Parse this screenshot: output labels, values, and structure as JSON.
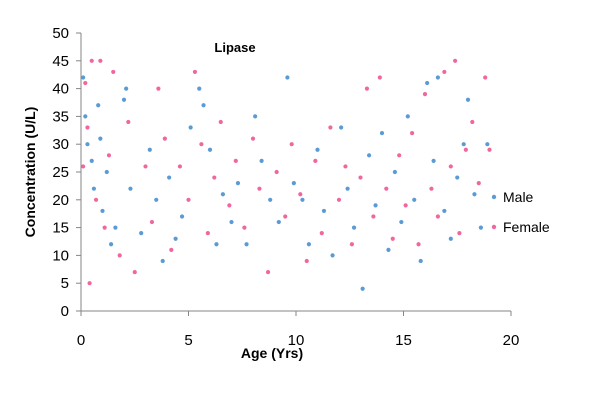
{
  "chart_data": {
    "type": "scatter",
    "title": "Lipase",
    "xlabel": "Age (Yrs)",
    "ylabel": "Concentration (U/L)",
    "xlim": [
      0,
      20
    ],
    "ylim": [
      0,
      50
    ],
    "xticks": [
      0,
      5,
      10,
      15,
      20
    ],
    "yticks": [
      0,
      5,
      10,
      15,
      20,
      25,
      30,
      35,
      40,
      45,
      50
    ],
    "grid": false,
    "legend_position": "right",
    "series": [
      {
        "name": "Male",
        "color": "#5b9bd5",
        "points": [
          [
            0.1,
            42
          ],
          [
            0.2,
            35
          ],
          [
            0.3,
            30
          ],
          [
            0.5,
            27
          ],
          [
            0.6,
            22
          ],
          [
            0.8,
            37
          ],
          [
            0.9,
            31
          ],
          [
            1.0,
            18
          ],
          [
            1.2,
            25
          ],
          [
            1.4,
            12
          ],
          [
            1.6,
            15
          ],
          [
            2.0,
            38
          ],
          [
            2.1,
            40
          ],
          [
            2.3,
            22
          ],
          [
            2.8,
            14
          ],
          [
            3.2,
            29
          ],
          [
            3.5,
            20
          ],
          [
            3.8,
            9
          ],
          [
            4.1,
            24
          ],
          [
            4.4,
            13
          ],
          [
            4.7,
            17
          ],
          [
            5.1,
            33
          ],
          [
            5.5,
            40
          ],
          [
            5.7,
            37
          ],
          [
            6.0,
            29
          ],
          [
            6.3,
            12
          ],
          [
            6.6,
            21
          ],
          [
            7.0,
            16
          ],
          [
            7.3,
            23
          ],
          [
            7.7,
            12
          ],
          [
            8.1,
            35
          ],
          [
            8.4,
            27
          ],
          [
            8.8,
            20
          ],
          [
            9.2,
            16
          ],
          [
            9.6,
            42
          ],
          [
            9.9,
            23
          ],
          [
            10.3,
            20
          ],
          [
            10.6,
            12
          ],
          [
            11.0,
            29
          ],
          [
            11.3,
            18
          ],
          [
            11.7,
            10
          ],
          [
            12.1,
            33
          ],
          [
            12.4,
            22
          ],
          [
            12.7,
            15
          ],
          [
            13.1,
            4
          ],
          [
            13.4,
            28
          ],
          [
            13.7,
            19
          ],
          [
            14.0,
            32
          ],
          [
            14.3,
            11
          ],
          [
            14.6,
            25
          ],
          [
            14.9,
            16
          ],
          [
            15.2,
            35
          ],
          [
            15.5,
            20
          ],
          [
            15.8,
            9
          ],
          [
            16.1,
            41
          ],
          [
            16.4,
            27
          ],
          [
            16.6,
            42
          ],
          [
            16.9,
            18
          ],
          [
            17.2,
            13
          ],
          [
            17.5,
            24
          ],
          [
            17.8,
            30
          ],
          [
            18.0,
            38
          ],
          [
            18.3,
            21
          ],
          [
            18.6,
            15
          ],
          [
            18.9,
            30
          ]
        ]
      },
      {
        "name": "Female",
        "color": "#f0679e",
        "points": [
          [
            0.1,
            26
          ],
          [
            0.2,
            41
          ],
          [
            0.3,
            33
          ],
          [
            0.4,
            5
          ],
          [
            0.5,
            45
          ],
          [
            0.7,
            20
          ],
          [
            0.9,
            45
          ],
          [
            1.1,
            15
          ],
          [
            1.3,
            28
          ],
          [
            1.5,
            43
          ],
          [
            1.8,
            10
          ],
          [
            2.2,
            34
          ],
          [
            2.5,
            7
          ],
          [
            3.0,
            26
          ],
          [
            3.3,
            16
          ],
          [
            3.6,
            40
          ],
          [
            3.9,
            31
          ],
          [
            4.2,
            11
          ],
          [
            4.6,
            26
          ],
          [
            5.0,
            20
          ],
          [
            5.3,
            43
          ],
          [
            5.6,
            30
          ],
          [
            5.9,
            14
          ],
          [
            6.2,
            24
          ],
          [
            6.5,
            34
          ],
          [
            6.9,
            19
          ],
          [
            7.2,
            27
          ],
          [
            7.6,
            15
          ],
          [
            8.0,
            31
          ],
          [
            8.3,
            22
          ],
          [
            8.7,
            7
          ],
          [
            9.1,
            25
          ],
          [
            9.5,
            17
          ],
          [
            9.8,
            30
          ],
          [
            10.2,
            21
          ],
          [
            10.5,
            9
          ],
          [
            10.9,
            27
          ],
          [
            11.2,
            14
          ],
          [
            11.6,
            33
          ],
          [
            12.0,
            20
          ],
          [
            12.3,
            26
          ],
          [
            12.6,
            12
          ],
          [
            13.0,
            24
          ],
          [
            13.3,
            40
          ],
          [
            13.6,
            17
          ],
          [
            13.9,
            42
          ],
          [
            14.2,
            22
          ],
          [
            14.5,
            13
          ],
          [
            14.8,
            28
          ],
          [
            15.1,
            19
          ],
          [
            15.4,
            32
          ],
          [
            15.7,
            12
          ],
          [
            16.0,
            39
          ],
          [
            16.3,
            22
          ],
          [
            16.6,
            17
          ],
          [
            16.9,
            43
          ],
          [
            17.2,
            26
          ],
          [
            17.4,
            45
          ],
          [
            17.6,
            14
          ],
          [
            17.9,
            29
          ],
          [
            18.2,
            34
          ],
          [
            18.5,
            23
          ],
          [
            18.8,
            42
          ],
          [
            19.0,
            29
          ]
        ]
      }
    ]
  }
}
